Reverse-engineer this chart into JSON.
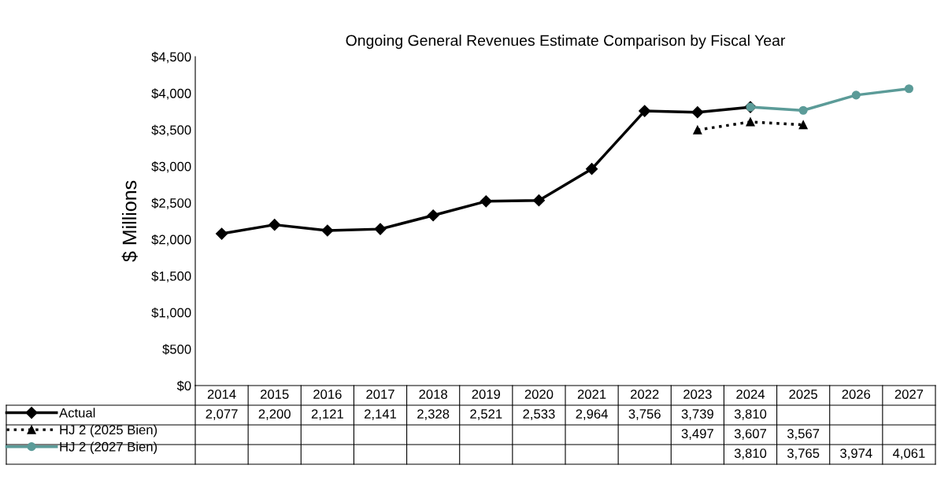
{
  "chart_data": {
    "type": "line",
    "title": "Ongoing General Revenues Estimate Comparison by Fiscal Year",
    "ylabel": "$ Millions",
    "categories": [
      "2014",
      "2015",
      "2016",
      "2017",
      "2018",
      "2019",
      "2020",
      "2021",
      "2022",
      "2023",
      "2024",
      "2025",
      "2026",
      "2027"
    ],
    "series": [
      {
        "name": "Actual",
        "color": "#000000",
        "marker": "diamond",
        "line_style": "solid",
        "values": [
          2077,
          2200,
          2121,
          2141,
          2328,
          2521,
          2533,
          2964,
          3756,
          3739,
          3810,
          null,
          null,
          null
        ],
        "value_labels": [
          "2,077",
          "2,200",
          "2,121",
          "2,141",
          "2,328",
          "2,521",
          "2,533",
          "2,964",
          "3,756",
          "3,739",
          "3,810",
          null,
          null,
          null
        ]
      },
      {
        "name": "HJ 2 (2025 Bien)",
        "color": "#000000",
        "marker": "triangle",
        "line_style": "dotted",
        "values": [
          null,
          null,
          null,
          null,
          null,
          null,
          null,
          null,
          null,
          3497,
          3607,
          3567,
          null,
          null
        ],
        "value_labels": [
          null,
          null,
          null,
          null,
          null,
          null,
          null,
          null,
          null,
          "3,497",
          "3,607",
          "3,567",
          null,
          null
        ]
      },
      {
        "name": "HJ 2 (2027 Bien)",
        "color": "#5b9b98",
        "marker": "circle",
        "line_style": "solid",
        "values": [
          null,
          null,
          null,
          null,
          null,
          null,
          null,
          null,
          null,
          null,
          3810,
          3765,
          3974,
          4061
        ],
        "value_labels": [
          null,
          null,
          null,
          null,
          null,
          null,
          null,
          null,
          null,
          null,
          "3,810",
          "3,765",
          "3,974",
          "4,061"
        ]
      }
    ],
    "ylim": [
      0,
      4500
    ],
    "yticks": [
      {
        "value": 0,
        "label": "$0"
      },
      {
        "value": 500,
        "label": "$500"
      },
      {
        "value": 1000,
        "label": "$1,000"
      },
      {
        "value": 1500,
        "label": "$1,500"
      },
      {
        "value": 2000,
        "label": "$2,000"
      },
      {
        "value": 2500,
        "label": "$2,500"
      },
      {
        "value": 3000,
        "label": "$3,000"
      },
      {
        "value": 3500,
        "label": "$3,500"
      },
      {
        "value": 4000,
        "label": "$4,000"
      },
      {
        "value": 4500,
        "label": "$4,500"
      }
    ],
    "legend": "bottom left",
    "grid": false
  }
}
